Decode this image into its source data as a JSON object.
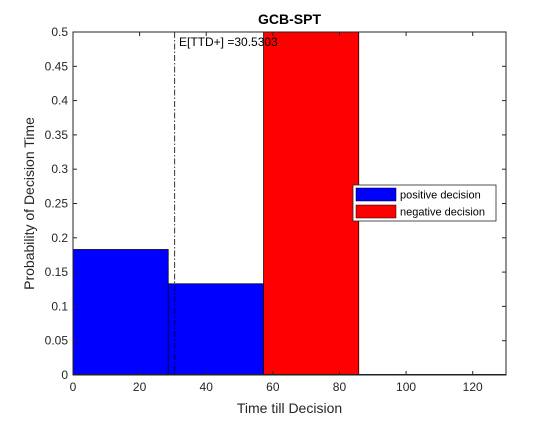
{
  "chart_data": {
    "type": "bar",
    "title": "GCB-SPT",
    "xlabel": "Time till Decision",
    "ylabel": "Probability of Decision Time",
    "xlim": [
      0,
      130
    ],
    "ylim": [
      0,
      0.5
    ],
    "xticks": [
      "0",
      "20",
      "40",
      "60",
      "80",
      "100",
      "120"
    ],
    "yticks": [
      "0",
      "0.05",
      "0.1",
      "0.15",
      "0.2",
      "0.25",
      "0.3",
      "0.35",
      "0.4",
      "0.45",
      "0.5"
    ],
    "grid": false,
    "legend_position": "right",
    "series": [
      {
        "name": "positive decision",
        "color": "#0000ff",
        "bins": [
          {
            "x0": 0,
            "x1": 28.6,
            "value": 0.183
          },
          {
            "x0": 28.6,
            "x1": 57.2,
            "value": 0.133
          }
        ]
      },
      {
        "name": "negative decision",
        "color": "#ff0000",
        "bins": [
          {
            "x0": 57.2,
            "x1": 85.8,
            "value": 0.5
          }
        ]
      }
    ],
    "reference_line": {
      "x": 30.5303,
      "style": "dash-dot",
      "label": "E[TTD+] =30.5303"
    }
  }
}
